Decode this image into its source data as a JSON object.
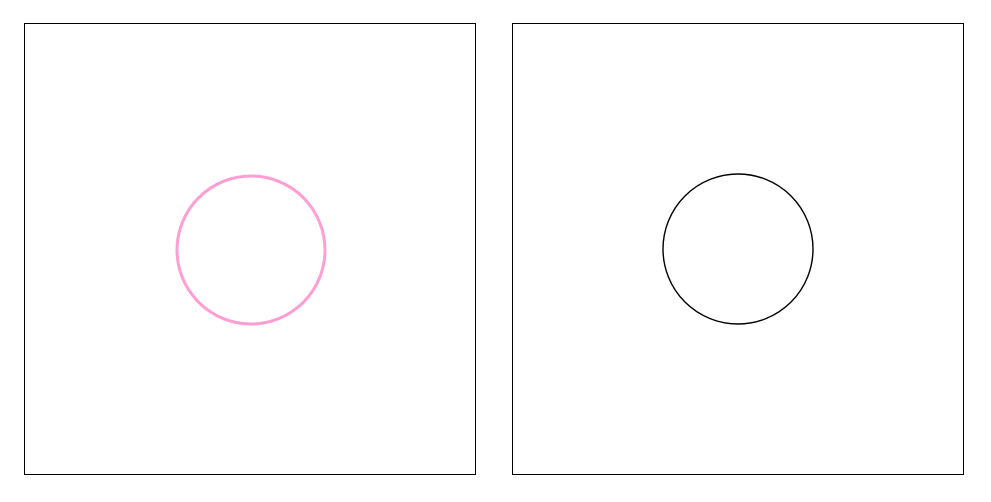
{
  "panels": [
    {
      "id": "left",
      "shape": "circle",
      "stroke_color": "#ff9ed2",
      "fill": "none"
    },
    {
      "id": "right",
      "shape": "circle",
      "stroke_color": "#000000",
      "fill": "none"
    }
  ]
}
